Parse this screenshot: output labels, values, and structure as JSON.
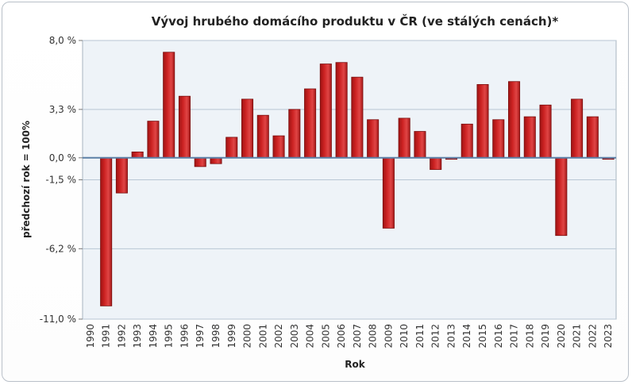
{
  "chart_data": {
    "type": "bar",
    "title": "Vývoj hrubého domácího produktu v ČR (ve stálých cenách)*",
    "xlabel": "Rok",
    "ylabel": "předchozí rok = 100%",
    "ylim": [
      -11.0,
      8.0
    ],
    "yticks": [
      8.0,
      3.3,
      0.0,
      -1.5,
      -6.2,
      -11.0
    ],
    "ytick_labels": [
      "8,0 %",
      "3,3 %",
      "0,0 %",
      "-1,5 %",
      "-6,2 %",
      "-11,0 %"
    ],
    "grid": true,
    "colors": {
      "bar": "#cc2222",
      "bar_edge": "#7a0e0e",
      "zero_line": "#5b7fa6",
      "plot_bg": "#eef3f8",
      "grid": "#b8c6d4"
    },
    "categories": [
      "1990",
      "1991",
      "1992",
      "1993",
      "1994",
      "1995",
      "1996",
      "1997",
      "1998",
      "1999",
      "2000",
      "2001",
      "2002",
      "2003",
      "2004",
      "2005",
      "2006",
      "2007",
      "2008",
      "2009",
      "2010",
      "2011",
      "2012",
      "2013",
      "2014",
      "2015",
      "2016",
      "2017",
      "2018",
      "2019",
      "2020",
      "2021",
      "2022",
      "2023"
    ],
    "values": [
      null,
      -10.1,
      -2.4,
      0.4,
      2.5,
      7.2,
      4.2,
      -0.6,
      -0.4,
      1.4,
      4.0,
      2.9,
      1.5,
      3.3,
      4.7,
      6.4,
      6.5,
      5.5,
      2.6,
      -4.8,
      2.7,
      1.8,
      -0.8,
      -0.1,
      2.3,
      5.0,
      2.6,
      5.2,
      2.8,
      3.6,
      -5.3,
      4.0,
      2.8,
      -0.1
    ]
  }
}
